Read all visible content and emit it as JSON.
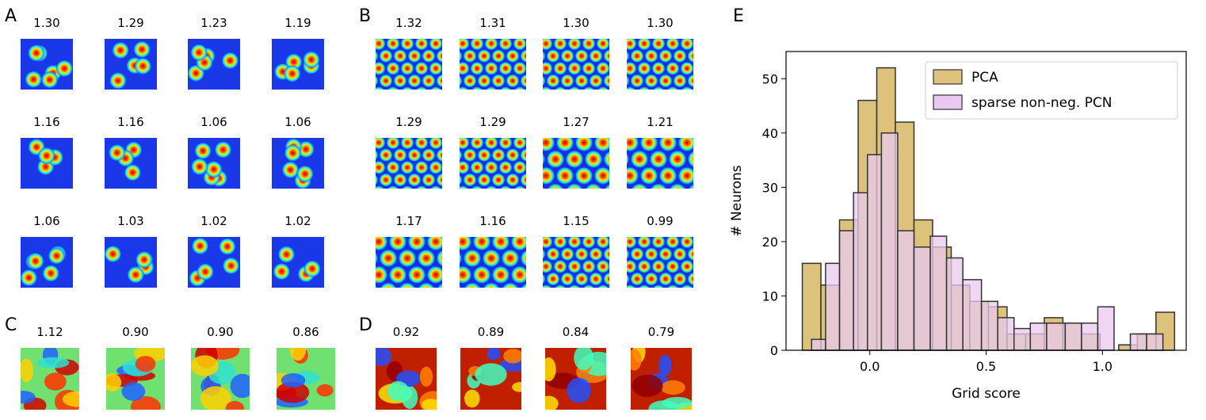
{
  "panels": {
    "A": {
      "letter": "A",
      "scores": [
        "1.30",
        "1.29",
        "1.23",
        "1.19",
        "1.16",
        "1.16",
        "1.06",
        "1.06",
        "1.06",
        "1.03",
        "1.02",
        "1.02"
      ]
    },
    "B": {
      "letter": "B",
      "scores": [
        "1.32",
        "1.31",
        "1.30",
        "1.30",
        "1.29",
        "1.29",
        "1.27",
        "1.21",
        "1.17",
        "1.16",
        "1.15",
        "0.99"
      ]
    },
    "C": {
      "letter": "C",
      "scores": [
        "1.12",
        "0.90",
        "0.90",
        "0.86"
      ]
    },
    "D": {
      "letter": "D",
      "scores": [
        "0.92",
        "0.89",
        "0.84",
        "0.79"
      ]
    },
    "E": {
      "letter": "E"
    }
  },
  "colors": {
    "pca": "#dcc27a",
    "pcn": "#e9c9f0",
    "edge": "#333333",
    "rate_map_low": "#1030e0",
    "rate_map_high": "#d01010"
  },
  "chart_data": {
    "type": "histogram",
    "title": "",
    "xlabel": "Grid score",
    "ylabel": "# Neurons",
    "xlim": [
      -0.36,
      1.36
    ],
    "ylim": [
      0,
      55
    ],
    "xticks": [
      0.0,
      0.5,
      1.0
    ],
    "xtick_labels": [
      "0.0",
      "0.5",
      "1.0"
    ],
    "yticks": [
      0,
      10,
      20,
      30,
      40,
      50
    ],
    "ytick_labels": [
      "0",
      "10",
      "20",
      "30",
      "40",
      "50"
    ],
    "legend_position": "top-right",
    "series": [
      {
        "name": "PCA",
        "bins": [
          {
            "x0": -0.29,
            "x1": -0.21,
            "value": 16
          },
          {
            "x0": -0.21,
            "x1": -0.13,
            "value": 12
          },
          {
            "x0": -0.13,
            "x1": -0.05,
            "value": 24
          },
          {
            "x0": -0.05,
            "x1": 0.03,
            "value": 46
          },
          {
            "x0": 0.03,
            "x1": 0.11,
            "value": 52
          },
          {
            "x0": 0.11,
            "x1": 0.19,
            "value": 42
          },
          {
            "x0": 0.19,
            "x1": 0.27,
            "value": 24
          },
          {
            "x0": 0.27,
            "x1": 0.35,
            "value": 19
          },
          {
            "x0": 0.35,
            "x1": 0.43,
            "value": 12
          },
          {
            "x0": 0.43,
            "x1": 0.51,
            "value": 9
          },
          {
            "x0": 0.51,
            "x1": 0.59,
            "value": 8
          },
          {
            "x0": 0.59,
            "x1": 0.67,
            "value": 3
          },
          {
            "x0": 0.67,
            "x1": 0.75,
            "value": 3
          },
          {
            "x0": 0.75,
            "x1": 0.83,
            "value": 6
          },
          {
            "x0": 0.83,
            "x1": 0.91,
            "value": 5
          },
          {
            "x0": 0.91,
            "x1": 0.99,
            "value": 3
          },
          {
            "x0": 0.99,
            "x1": 1.07,
            "value": 0
          },
          {
            "x0": 1.07,
            "x1": 1.15,
            "value": 1
          },
          {
            "x0": 1.15,
            "x1": 1.23,
            "value": 3
          },
          {
            "x0": 1.23,
            "x1": 1.31,
            "value": 7
          }
        ]
      },
      {
        "name": "sparse non-neg. PCN",
        "bins": [
          {
            "x0": -0.25,
            "x1": -0.19,
            "value": 2
          },
          {
            "x0": -0.19,
            "x1": -0.13,
            "value": 16
          },
          {
            "x0": -0.13,
            "x1": -0.07,
            "value": 22
          },
          {
            "x0": -0.07,
            "x1": -0.01,
            "value": 29
          },
          {
            "x0": -0.01,
            "x1": 0.05,
            "value": 36
          },
          {
            "x0": 0.05,
            "x1": 0.12,
            "value": 40
          },
          {
            "x0": 0.12,
            "x1": 0.19,
            "value": 22
          },
          {
            "x0": 0.19,
            "x1": 0.26,
            "value": 19
          },
          {
            "x0": 0.26,
            "x1": 0.33,
            "value": 21
          },
          {
            "x0": 0.33,
            "x1": 0.4,
            "value": 17
          },
          {
            "x0": 0.4,
            "x1": 0.48,
            "value": 13
          },
          {
            "x0": 0.48,
            "x1": 0.55,
            "value": 9
          },
          {
            "x0": 0.55,
            "x1": 0.62,
            "value": 6
          },
          {
            "x0": 0.62,
            "x1": 0.69,
            "value": 4
          },
          {
            "x0": 0.69,
            "x1": 0.76,
            "value": 5
          },
          {
            "x0": 0.76,
            "x1": 0.84,
            "value": 5
          },
          {
            "x0": 0.84,
            "x1": 0.91,
            "value": 5
          },
          {
            "x0": 0.91,
            "x1": 0.98,
            "value": 5
          },
          {
            "x0": 0.98,
            "x1": 1.05,
            "value": 8
          },
          {
            "x0": 1.05,
            "x1": 1.12,
            "value": 0
          },
          {
            "x0": 1.12,
            "x1": 1.19,
            "value": 3
          },
          {
            "x0": 1.19,
            "x1": 1.26,
            "value": 3
          }
        ]
      }
    ]
  }
}
